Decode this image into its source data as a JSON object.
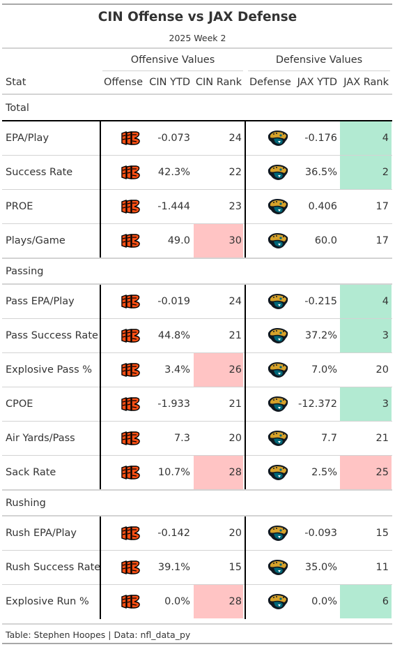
{
  "title": "CIN Offense vs JAX Defense",
  "subtitle": "2025 Week 2",
  "spanners": {
    "offense": "Offensive Values",
    "defense": "Defensive Values"
  },
  "columns": {
    "stat": "Stat",
    "offense": "Offense",
    "cin_ytd": "CIN YTD",
    "cin_rank": "CIN Rank",
    "defense": "Defense",
    "jax_ytd": "JAX YTD",
    "jax_rank": "JAX Rank"
  },
  "colors": {
    "good": "#b2ead2",
    "bad": "#ffc4c4",
    "bengals_orange": "#fb4f14",
    "jaguars_teal": "#006778",
    "jaguars_gold": "#d7a22a"
  },
  "icons": {
    "offense_logo": "bengals-logo-icon",
    "defense_logo": "jaguars-logo-icon"
  },
  "chart_data": {
    "type": "table",
    "title": "CIN Offense vs JAX Defense",
    "subtitle": "2025 Week 2",
    "columns": [
      "Stat",
      "Offense",
      "CIN YTD",
      "CIN Rank",
      "Defense",
      "JAX YTD",
      "JAX Rank"
    ],
    "groups": [
      {
        "name": "Total",
        "rows": [
          {
            "stat": "EPA/Play",
            "cin_ytd": "-0.073",
            "cin_rank": "24",
            "jax_ytd": "-0.176",
            "jax_rank": "4",
            "cin_hl": "",
            "jax_hl": "good"
          },
          {
            "stat": "Success Rate",
            "cin_ytd": "42.3%",
            "cin_rank": "22",
            "jax_ytd": "36.5%",
            "jax_rank": "2",
            "cin_hl": "",
            "jax_hl": "good"
          },
          {
            "stat": "PROE",
            "cin_ytd": "-1.444",
            "cin_rank": "23",
            "jax_ytd": "0.406",
            "jax_rank": "17",
            "cin_hl": "",
            "jax_hl": ""
          },
          {
            "stat": "Plays/Game",
            "cin_ytd": "49.0",
            "cin_rank": "30",
            "jax_ytd": "60.0",
            "jax_rank": "17",
            "cin_hl": "bad",
            "jax_hl": ""
          }
        ]
      },
      {
        "name": "Passing",
        "rows": [
          {
            "stat": "Pass EPA/Play",
            "cin_ytd": "-0.019",
            "cin_rank": "24",
            "jax_ytd": "-0.215",
            "jax_rank": "4",
            "cin_hl": "",
            "jax_hl": "good"
          },
          {
            "stat": "Pass Success Rate",
            "cin_ytd": "44.8%",
            "cin_rank": "21",
            "jax_ytd": "37.2%",
            "jax_rank": "3",
            "cin_hl": "",
            "jax_hl": "good"
          },
          {
            "stat": "Explosive Pass %",
            "cin_ytd": "3.4%",
            "cin_rank": "26",
            "jax_ytd": "7.0%",
            "jax_rank": "20",
            "cin_hl": "bad",
            "jax_hl": ""
          },
          {
            "stat": "CPOE",
            "cin_ytd": "-1.933",
            "cin_rank": "21",
            "jax_ytd": "-12.372",
            "jax_rank": "3",
            "cin_hl": "",
            "jax_hl": "good"
          },
          {
            "stat": "Air Yards/Pass",
            "cin_ytd": "7.3",
            "cin_rank": "20",
            "jax_ytd": "7.7",
            "jax_rank": "21",
            "cin_hl": "",
            "jax_hl": ""
          },
          {
            "stat": "Sack Rate",
            "cin_ytd": "10.7%",
            "cin_rank": "28",
            "jax_ytd": "2.5%",
            "jax_rank": "25",
            "cin_hl": "bad",
            "jax_hl": "bad"
          }
        ]
      },
      {
        "name": "Rushing",
        "rows": [
          {
            "stat": "Rush EPA/Play",
            "cin_ytd": "-0.142",
            "cin_rank": "20",
            "jax_ytd": "-0.093",
            "jax_rank": "15",
            "cin_hl": "",
            "jax_hl": ""
          },
          {
            "stat": "Rush Success Rate",
            "cin_ytd": "39.1%",
            "cin_rank": "15",
            "jax_ytd": "35.0%",
            "jax_rank": "11",
            "cin_hl": "",
            "jax_hl": ""
          },
          {
            "stat": "Explosive Run %",
            "cin_ytd": "0.0%",
            "cin_rank": "28",
            "jax_ytd": "0.0%",
            "jax_rank": "6",
            "cin_hl": "bad",
            "jax_hl": "good"
          }
        ]
      }
    ]
  },
  "footer": "Table: Stephen Hoopes | Data: nfl_data_py"
}
